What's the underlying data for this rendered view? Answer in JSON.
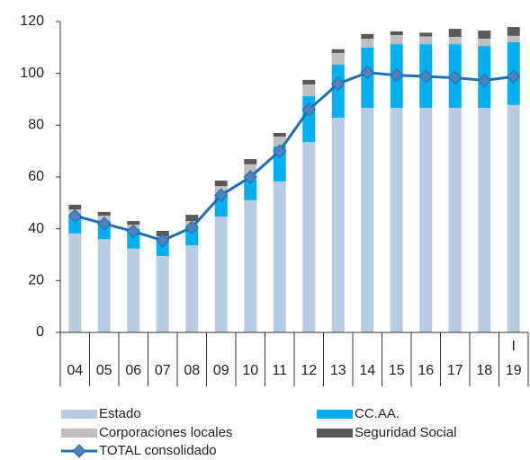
{
  "chart_data": {
    "type": "bar",
    "categories": [
      "04",
      "05",
      "06",
      "07",
      "08",
      "09",
      "10",
      "11",
      "12",
      "13",
      "14",
      "15",
      "16",
      "17",
      "18",
      "19"
    ],
    "x_top_labels": [
      null,
      null,
      null,
      null,
      null,
      null,
      null,
      null,
      null,
      null,
      null,
      null,
      null,
      null,
      null,
      "I"
    ],
    "series": [
      {
        "name": "Estado",
        "color": "#b8cce4",
        "values": [
          38.2,
          36,
          32.3,
          29.5,
          33.6,
          44.7,
          51,
          58.3,
          73.5,
          82.9,
          86.7,
          86.7,
          86.7,
          86.7,
          86.7,
          87.8
        ]
      },
      {
        "name": "CC.AA.",
        "color": "#00b0f0",
        "values": [
          6.9,
          7,
          7.6,
          5.9,
          6.3,
          8,
          8,
          13.5,
          17.7,
          20.5,
          23.3,
          24.6,
          24.6,
          24.6,
          23.9,
          24.2
        ]
      },
      {
        "name": "Corporaciones locales",
        "color": "#bfbfbf",
        "values": [
          2.4,
          2.1,
          1.7,
          1.7,
          3.1,
          3.8,
          5.9,
          3.8,
          4.5,
          4.5,
          3.4,
          3.5,
          3.0,
          2.8,
          2.8,
          2.5
        ]
      },
      {
        "name": "Seguridad Social",
        "color": "#595959",
        "values": [
          1.8,
          1.4,
          1.4,
          2.1,
          2.4,
          2.1,
          2,
          1.4,
          1.8,
          1.4,
          1.8,
          1.4,
          1.4,
          3.1,
          3.1,
          3.4
        ]
      }
    ],
    "line": {
      "name": "TOTAL consolidado",
      "color": "#1f6fb4",
      "marker_color": "#4f81bd",
      "values": [
        45,
        42,
        39,
        35.5,
        40.5,
        53,
        60,
        70,
        86,
        96,
        100.3,
        99.3,
        98.8,
        98.3,
        97.3,
        98.7
      ]
    },
    "ylim": [
      0,
      120
    ],
    "yticks": [
      0,
      20,
      40,
      60,
      80,
      100,
      120
    ],
    "grid": false
  }
}
